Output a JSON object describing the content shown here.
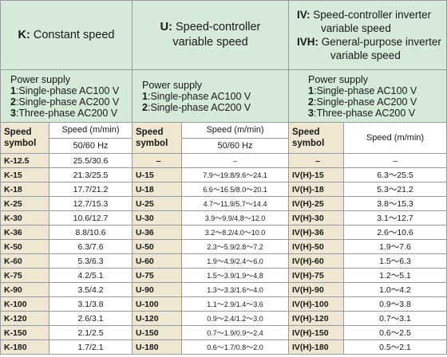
{
  "headers": {
    "k": {
      "code": "K:",
      "text": "Constant speed"
    },
    "u": {
      "code": "U:",
      "line1": "Speed-controller",
      "line2": "variable speed"
    },
    "iv": {
      "code1": "IV:",
      "line1": "Speed-controller inverter",
      "line1b": "variable speed",
      "code2": "IVH:",
      "line2": "General-purpose inverter",
      "line2b": "variable speed"
    }
  },
  "power": {
    "k": {
      "title": "Power supply",
      "items": [
        {
          "num": "1",
          "text": ":Single-phase AC100 V"
        },
        {
          "num": "2",
          "text": ":Single-phase AC200 V"
        },
        {
          "num": "3",
          "text": ":Three-phase AC200 V"
        }
      ]
    },
    "u": {
      "title": "Power supply",
      "items": [
        {
          "num": "1",
          "text": ":Single-phase AC100 V"
        },
        {
          "num": "2",
          "text": ":Single-phase AC200 V"
        }
      ]
    },
    "iv": {
      "title": "Power supply",
      "items": [
        {
          "num": "1",
          "text": ":Single-phase AC100 V"
        },
        {
          "num": "2",
          "text": ":Single-phase AC200 V"
        },
        {
          "num": "3",
          "text": ":Three-phase AC200 V"
        }
      ]
    }
  },
  "columns": {
    "symbol_line1": "Speed",
    "symbol_line2": "symbol",
    "speed": "Speed (m/min)",
    "hz": "50/60 Hz"
  },
  "rows": [
    {
      "k": "K-12.5",
      "kv": "25.5/30.6",
      "u": "–",
      "uv": "–",
      "iv": "–",
      "ivv": "–"
    },
    {
      "k": "K-15",
      "kv": "21.3/25.5",
      "u": "U-15",
      "uv": "7.9～19.8/9.6～24.1",
      "iv": "IV(H)-15",
      "ivv": "6.3～25.5"
    },
    {
      "k": "K-18",
      "kv": "17.7/21.2",
      "u": "U-18",
      "uv": "6.6～16.5/8.0～20.1",
      "iv": "IV(H)-18",
      "ivv": "5.3～21.2"
    },
    {
      "k": "K-25",
      "kv": "12.7/15.3",
      "u": "U-25",
      "uv": "4.7～11.9/5.7～14.4",
      "iv": "IV(H)-25",
      "ivv": "3.8～15.3"
    },
    {
      "k": "K-30",
      "kv": "10.6/12.7",
      "u": "U-30",
      "uv": "3.9～9.9/4.8～12.0",
      "iv": "IV(H)-30",
      "ivv": "3.1～12.7"
    },
    {
      "k": "K-36",
      "kv": "8.8/10.6",
      "u": "U-36",
      "uv": "3.2～8.2/4.0～10.0",
      "iv": "IV(H)-36",
      "ivv": "2.6～10.6"
    },
    {
      "k": "K-50",
      "kv": "6.3/7.6",
      "u": "U-50",
      "uv": "2.3～5.9/2.8～7.2",
      "iv": "IV(H)-50",
      "ivv": "1.9～7.6"
    },
    {
      "k": "K-60",
      "kv": "5.3/6.3",
      "u": "U-60",
      "uv": "1.9～4.9/2.4～6.0",
      "iv": "IV(H)-60",
      "ivv": "1.5～6.3"
    },
    {
      "k": "K-75",
      "kv": "4.2/5.1",
      "u": "U-75",
      "uv": "1.5～3.9/1.9～4.8",
      "iv": "IV(H)-75",
      "ivv": "1.2～5.1"
    },
    {
      "k": "K-90",
      "kv": "3.5/4.2",
      "u": "U-90",
      "uv": "1.3～3.3/1.6～4.0",
      "iv": "IV(H)-90",
      "ivv": "1.0～4.2"
    },
    {
      "k": "K-100",
      "kv": "3.1/3.8",
      "u": "U-100",
      "uv": "1.1～2.9/1.4～3.6",
      "iv": "IV(H)-100",
      "ivv": "0.9～3.8"
    },
    {
      "k": "K-120",
      "kv": "2.6/3.1",
      "u": "U-120",
      "uv": "0.9～2.4/1.2～3.0",
      "iv": "IV(H)-120",
      "ivv": "0.7～3.1"
    },
    {
      "k": "K-150",
      "kv": "2.1/2.5",
      "u": "U-150",
      "uv": "0.7～1.9/0.9～2.4",
      "iv": "IV(H)-150",
      "ivv": "0.6～2.5"
    },
    {
      "k": "K-180",
      "kv": "1.7/2.1",
      "u": "U-180",
      "uv": "0.6～1.7/0.8～2.0",
      "iv": "IV(H)-180",
      "ivv": "0.5～2.1"
    }
  ]
}
